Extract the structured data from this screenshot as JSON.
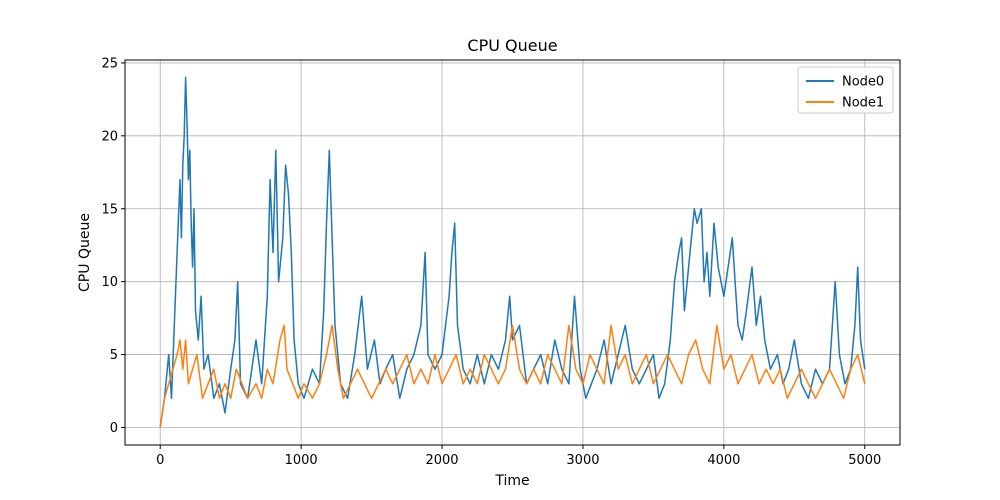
{
  "chart_data": {
    "type": "line",
    "title": "CPU Queue",
    "xlabel": "Time",
    "ylabel": "CPU Queue",
    "xlim": [
      -250,
      5250
    ],
    "ylim": [
      -1.2,
      25.2
    ],
    "xticks": [
      0,
      1000,
      2000,
      3000,
      4000,
      5000
    ],
    "yticks": [
      0,
      5,
      10,
      15,
      20,
      25
    ],
    "grid": true,
    "legend_position": "top-right",
    "series": [
      {
        "name": "Node0",
        "color": "#1f77b4",
        "points": [
          [
            0,
            0
          ],
          [
            30,
            2
          ],
          [
            60,
            5
          ],
          [
            80,
            2
          ],
          [
            100,
            7
          ],
          [
            120,
            12
          ],
          [
            140,
            17
          ],
          [
            150,
            13
          ],
          [
            160,
            18
          ],
          [
            170,
            20
          ],
          [
            180,
            24
          ],
          [
            190,
            21
          ],
          [
            200,
            17
          ],
          [
            210,
            19
          ],
          [
            220,
            14
          ],
          [
            230,
            11
          ],
          [
            240,
            15
          ],
          [
            250,
            8
          ],
          [
            270,
            6
          ],
          [
            290,
            9
          ],
          [
            310,
            4
          ],
          [
            340,
            5
          ],
          [
            380,
            2
          ],
          [
            420,
            3
          ],
          [
            460,
            1
          ],
          [
            500,
            4
          ],
          [
            530,
            6
          ],
          [
            550,
            10
          ],
          [
            570,
            3
          ],
          [
            620,
            2
          ],
          [
            680,
            6
          ],
          [
            720,
            3
          ],
          [
            760,
            9
          ],
          [
            780,
            17
          ],
          [
            800,
            12
          ],
          [
            820,
            19
          ],
          [
            840,
            10
          ],
          [
            870,
            13
          ],
          [
            890,
            18
          ],
          [
            910,
            16
          ],
          [
            930,
            12
          ],
          [
            950,
            6
          ],
          [
            980,
            3
          ],
          [
            1020,
            2
          ],
          [
            1080,
            4
          ],
          [
            1130,
            3
          ],
          [
            1160,
            8
          ],
          [
            1180,
            14
          ],
          [
            1200,
            19
          ],
          [
            1220,
            13
          ],
          [
            1240,
            7
          ],
          [
            1280,
            3
          ],
          [
            1330,
            2
          ],
          [
            1380,
            5
          ],
          [
            1430,
            9
          ],
          [
            1470,
            4
          ],
          [
            1520,
            6
          ],
          [
            1560,
            3
          ],
          [
            1600,
            4
          ],
          [
            1650,
            5
          ],
          [
            1700,
            2
          ],
          [
            1750,
            4
          ],
          [
            1800,
            5
          ],
          [
            1850,
            7
          ],
          [
            1880,
            12
          ],
          [
            1900,
            5
          ],
          [
            1950,
            4
          ],
          [
            2000,
            5
          ],
          [
            2050,
            9
          ],
          [
            2070,
            12
          ],
          [
            2090,
            14
          ],
          [
            2110,
            7
          ],
          [
            2150,
            4
          ],
          [
            2200,
            3
          ],
          [
            2250,
            5
          ],
          [
            2300,
            3
          ],
          [
            2350,
            5
          ],
          [
            2400,
            4
          ],
          [
            2450,
            6
          ],
          [
            2480,
            9
          ],
          [
            2500,
            6
          ],
          [
            2550,
            7
          ],
          [
            2600,
            3
          ],
          [
            2650,
            4
          ],
          [
            2700,
            5
          ],
          [
            2750,
            3
          ],
          [
            2800,
            6
          ],
          [
            2850,
            4
          ],
          [
            2900,
            3
          ],
          [
            2940,
            9
          ],
          [
            2980,
            4
          ],
          [
            3020,
            2
          ],
          [
            3060,
            3
          ],
          [
            3100,
            4
          ],
          [
            3150,
            6
          ],
          [
            3200,
            3
          ],
          [
            3250,
            5
          ],
          [
            3300,
            7
          ],
          [
            3350,
            4
          ],
          [
            3400,
            3
          ],
          [
            3450,
            4
          ],
          [
            3500,
            5
          ],
          [
            3540,
            2
          ],
          [
            3580,
            3
          ],
          [
            3620,
            6
          ],
          [
            3650,
            10
          ],
          [
            3680,
            12
          ],
          [
            3700,
            13
          ],
          [
            3720,
            8
          ],
          [
            3760,
            12
          ],
          [
            3790,
            15
          ],
          [
            3810,
            14
          ],
          [
            3840,
            15
          ],
          [
            3860,
            10
          ],
          [
            3880,
            12
          ],
          [
            3900,
            9
          ],
          [
            3930,
            14
          ],
          [
            3960,
            11
          ],
          [
            4000,
            9
          ],
          [
            4030,
            11
          ],
          [
            4060,
            13
          ],
          [
            4080,
            10
          ],
          [
            4100,
            7
          ],
          [
            4130,
            6
          ],
          [
            4160,
            8
          ],
          [
            4200,
            11
          ],
          [
            4230,
            7
          ],
          [
            4260,
            9
          ],
          [
            4290,
            6
          ],
          [
            4330,
            4
          ],
          [
            4380,
            5
          ],
          [
            4420,
            3
          ],
          [
            4460,
            4
          ],
          [
            4500,
            6
          ],
          [
            4550,
            3
          ],
          [
            4600,
            2
          ],
          [
            4650,
            4
          ],
          [
            4700,
            3
          ],
          [
            4750,
            4
          ],
          [
            4790,
            10
          ],
          [
            4820,
            5
          ],
          [
            4860,
            3
          ],
          [
            4900,
            4
          ],
          [
            4930,
            7
          ],
          [
            4950,
            11
          ],
          [
            4970,
            6
          ],
          [
            5000,
            4
          ]
        ]
      },
      {
        "name": "Node1",
        "color": "#ff7f0e",
        "points": [
          [
            0,
            0
          ],
          [
            30,
            2
          ],
          [
            60,
            3
          ],
          [
            90,
            4
          ],
          [
            120,
            5
          ],
          [
            140,
            6
          ],
          [
            160,
            4
          ],
          [
            180,
            6
          ],
          [
            200,
            3
          ],
          [
            230,
            4
          ],
          [
            260,
            5
          ],
          [
            300,
            2
          ],
          [
            340,
            3
          ],
          [
            380,
            4
          ],
          [
            420,
            2
          ],
          [
            460,
            3
          ],
          [
            500,
            2
          ],
          [
            540,
            4
          ],
          [
            580,
            3
          ],
          [
            620,
            2
          ],
          [
            680,
            3
          ],
          [
            720,
            2
          ],
          [
            760,
            4
          ],
          [
            800,
            3
          ],
          [
            850,
            6
          ],
          [
            880,
            7
          ],
          [
            900,
            4
          ],
          [
            940,
            3
          ],
          [
            980,
            2
          ],
          [
            1020,
            3
          ],
          [
            1080,
            2
          ],
          [
            1130,
            3
          ],
          [
            1180,
            5
          ],
          [
            1220,
            7
          ],
          [
            1260,
            4
          ],
          [
            1300,
            2
          ],
          [
            1350,
            3
          ],
          [
            1400,
            4
          ],
          [
            1450,
            3
          ],
          [
            1500,
            2
          ],
          [
            1550,
            3
          ],
          [
            1600,
            4
          ],
          [
            1650,
            3
          ],
          [
            1700,
            4
          ],
          [
            1750,
            5
          ],
          [
            1800,
            3
          ],
          [
            1850,
            4
          ],
          [
            1900,
            3
          ],
          [
            1950,
            5
          ],
          [
            2000,
            3
          ],
          [
            2050,
            4
          ],
          [
            2100,
            5
          ],
          [
            2150,
            3
          ],
          [
            2200,
            4
          ],
          [
            2250,
            3
          ],
          [
            2300,
            5
          ],
          [
            2350,
            4
          ],
          [
            2400,
            3
          ],
          [
            2450,
            4
          ],
          [
            2500,
            7
          ],
          [
            2550,
            4
          ],
          [
            2600,
            3
          ],
          [
            2650,
            4
          ],
          [
            2700,
            3
          ],
          [
            2750,
            5
          ],
          [
            2800,
            4
          ],
          [
            2850,
            3
          ],
          [
            2900,
            7
          ],
          [
            2950,
            4
          ],
          [
            3000,
            3
          ],
          [
            3050,
            5
          ],
          [
            3100,
            4
          ],
          [
            3150,
            3
          ],
          [
            3200,
            7
          ],
          [
            3250,
            4
          ],
          [
            3300,
            5
          ],
          [
            3350,
            3
          ],
          [
            3400,
            4
          ],
          [
            3450,
            5
          ],
          [
            3500,
            3
          ],
          [
            3550,
            4
          ],
          [
            3600,
            5
          ],
          [
            3650,
            4
          ],
          [
            3700,
            3
          ],
          [
            3750,
            5
          ],
          [
            3800,
            6
          ],
          [
            3850,
            4
          ],
          [
            3900,
            3
          ],
          [
            3950,
            7
          ],
          [
            4000,
            4
          ],
          [
            4050,
            5
          ],
          [
            4100,
            3
          ],
          [
            4150,
            4
          ],
          [
            4200,
            5
          ],
          [
            4250,
            3
          ],
          [
            4300,
            4
          ],
          [
            4350,
            3
          ],
          [
            4400,
            4
          ],
          [
            4450,
            2
          ],
          [
            4500,
            3
          ],
          [
            4550,
            4
          ],
          [
            4600,
            3
          ],
          [
            4650,
            2
          ],
          [
            4700,
            3
          ],
          [
            4750,
            4
          ],
          [
            4800,
            3
          ],
          [
            4850,
            2
          ],
          [
            4900,
            4
          ],
          [
            4950,
            5
          ],
          [
            5000,
            3
          ]
        ]
      }
    ]
  }
}
